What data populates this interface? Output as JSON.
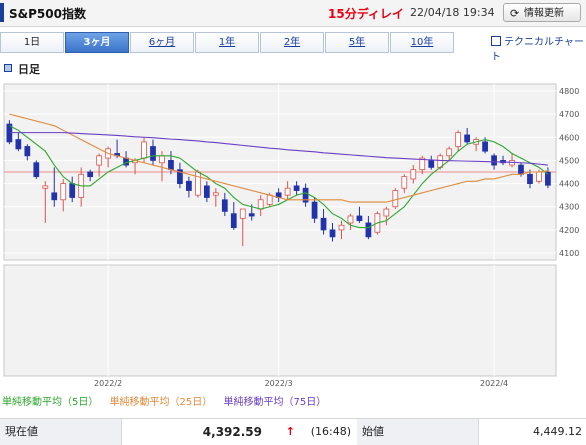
{
  "header": {
    "title": "S&P500指数",
    "delay": "15分ディレイ",
    "datetime": "22/04/18 19:34",
    "refresh_label": "情報更新",
    "refresh_icon": "refresh-icon"
  },
  "tabs": [
    {
      "label": "1日",
      "active": false
    },
    {
      "label": "3ヶ月",
      "active": true
    },
    {
      "label": "6ヶ月",
      "active": false
    },
    {
      "label": "1年",
      "active": false
    },
    {
      "label": "2年",
      "active": false
    },
    {
      "label": "5年",
      "active": false
    },
    {
      "label": "10年",
      "active": false
    }
  ],
  "technical_chart_label": "テクニカルチャート",
  "period_label": "日足",
  "legend": [
    {
      "label": "単純移動平均（5日）",
      "color": "#2ea82e"
    },
    {
      "label": "単純移動平均（25日）",
      "color": "#e08a3c"
    },
    {
      "label": "単純移動平均（75日）",
      "color": "#6a3fc4"
    }
  ],
  "quote": {
    "current_label": "現在値",
    "current_value": "4,392.59",
    "arrow": "↑",
    "current_time": "(16:48)",
    "open_label": "始値",
    "open_value": "4,449.12"
  },
  "chart_data": {
    "type": "candlestick",
    "y_ticks": [
      4100,
      4200,
      4300,
      4400,
      4500,
      4600,
      4700,
      4800
    ],
    "ylim": [
      4070,
      4830
    ],
    "x_labels": [
      {
        "label": "2022/2",
        "index": 11
      },
      {
        "label": "2022/3",
        "index": 30
      },
      {
        "label": "2022/4",
        "index": 54
      }
    ],
    "reference_line": 4450,
    "candles": [
      [
        4657,
        4674,
        4570,
        4580
      ],
      [
        4590,
        4620,
        4540,
        4550
      ],
      [
        4560,
        4570,
        4500,
        4520
      ],
      [
        4490,
        4500,
        4420,
        4430
      ],
      [
        4380,
        4410,
        4230,
        4390
      ],
      [
        4360,
        4470,
        4300,
        4330
      ],
      [
        4330,
        4420,
        4280,
        4400
      ],
      [
        4400,
        4430,
        4320,
        4340
      ],
      [
        4340,
        4470,
        4300,
        4440
      ],
      [
        4450,
        4460,
        4410,
        4430
      ],
      [
        4480,
        4530,
        4430,
        4520
      ],
      [
        4510,
        4560,
        4470,
        4550
      ],
      [
        4530,
        4590,
        4510,
        4520
      ],
      [
        4510,
        4540,
        4470,
        4480
      ],
      [
        4490,
        4510,
        4440,
        4500
      ],
      [
        4510,
        4600,
        4490,
        4580
      ],
      [
        4560,
        4590,
        4480,
        4500
      ],
      [
        4490,
        4540,
        4410,
        4520
      ],
      [
        4500,
        4540,
        4440,
        4460
      ],
      [
        4460,
        4490,
        4380,
        4400
      ],
      [
        4410,
        4430,
        4340,
        4370
      ],
      [
        4350,
        4460,
        4340,
        4450
      ],
      [
        4390,
        4410,
        4320,
        4340
      ],
      [
        4350,
        4380,
        4300,
        4360
      ],
      [
        4330,
        4360,
        4260,
        4280
      ],
      [
        4270,
        4320,
        4200,
        4210
      ],
      [
        4250,
        4290,
        4130,
        4290
      ],
      [
        4270,
        4310,
        4240,
        4260
      ],
      [
        4290,
        4350,
        4260,
        4330
      ],
      [
        4310,
        4360,
        4300,
        4350
      ],
      [
        4360,
        4380,
        4320,
        4340
      ],
      [
        4350,
        4410,
        4330,
        4380
      ],
      [
        4390,
        4410,
        4350,
        4370
      ],
      [
        4380,
        4400,
        4300,
        4320
      ],
      [
        4320,
        4340,
        4230,
        4250
      ],
      [
        4250,
        4290,
        4180,
        4200
      ],
      [
        4200,
        4230,
        4150,
        4170
      ],
      [
        4200,
        4240,
        4160,
        4220
      ],
      [
        4230,
        4270,
        4200,
        4260
      ],
      [
        4260,
        4300,
        4230,
        4240
      ],
      [
        4230,
        4260,
        4160,
        4170
      ],
      [
        4190,
        4280,
        4180,
        4270
      ],
      [
        4260,
        4300,
        4220,
        4290
      ],
      [
        4300,
        4380,
        4290,
        4370
      ],
      [
        4380,
        4440,
        4360,
        4430
      ],
      [
        4420,
        4480,
        4400,
        4460
      ],
      [
        4460,
        4520,
        4440,
        4510
      ],
      [
        4500,
        4520,
        4460,
        4470
      ],
      [
        4470,
        4530,
        4460,
        4520
      ],
      [
        4520,
        4560,
        4500,
        4550
      ],
      [
        4560,
        4630,
        4540,
        4620
      ],
      [
        4610,
        4640,
        4570,
        4580
      ],
      [
        4570,
        4600,
        4540,
        4590
      ],
      [
        4580,
        4600,
        4530,
        4540
      ],
      [
        4520,
        4530,
        4460,
        4480
      ],
      [
        4500,
        4520,
        4480,
        4490
      ],
      [
        4480,
        4530,
        4470,
        4500
      ],
      [
        4480,
        4490,
        4430,
        4440
      ],
      [
        4440,
        4460,
        4380,
        4400
      ],
      [
        4410,
        4460,
        4400,
        4450
      ],
      [
        4449,
        4470,
        4380,
        4393
      ]
    ],
    "sma5": [
      4650,
      4630,
      4600,
      4570,
      4540,
      4480,
      4430,
      4400,
      4390,
      4390,
      4420,
      4450,
      4470,
      4490,
      4500,
      4510,
      4520,
      4520,
      4520,
      4510,
      4480,
      4450,
      4430,
      4400,
      4380,
      4340,
      4310,
      4300,
      4290,
      4300,
      4310,
      4330,
      4350,
      4360,
      4340,
      4310,
      4270,
      4250,
      4220,
      4210,
      4210,
      4230,
      4240,
      4270,
      4300,
      4350,
      4400,
      4440,
      4470,
      4500,
      4540,
      4570,
      4580,
      4590,
      4580,
      4560,
      4530,
      4510,
      4490,
      4470,
      4440
    ],
    "sma25": [
      4700,
      4690,
      4680,
      4670,
      4660,
      4650,
      4630,
      4610,
      4590,
      4570,
      4550,
      4530,
      4520,
      4510,
      4500,
      4490,
      4480,
      4470,
      4460,
      4450,
      4440,
      4430,
      4420,
      4410,
      4400,
      4390,
      4380,
      4370,
      4360,
      4350,
      4340,
      4330,
      4330,
      4330,
      4330,
      4330,
      4330,
      4330,
      4320,
      4320,
      4320,
      4320,
      4320,
      4330,
      4340,
      4350,
      4360,
      4370,
      4380,
      4390,
      4400,
      4410,
      4410,
      4420,
      4420,
      4430,
      4440,
      4440,
      4450,
      4450,
      4455
    ],
    "sma75": [
      4620,
      4620,
      4620,
      4620,
      4620,
      4620,
      4620,
      4618,
      4616,
      4614,
      4612,
      4610,
      4608,
      4605,
      4602,
      4600,
      4598,
      4595,
      4592,
      4590,
      4587,
      4584,
      4580,
      4577,
      4573,
      4569,
      4565,
      4561,
      4557,
      4553,
      4550,
      4546,
      4543,
      4540,
      4537,
      4533,
      4530,
      4527,
      4524,
      4521,
      4518,
      4515,
      4512,
      4510,
      4508,
      4506,
      4504,
      4502,
      4500,
      4499,
      4498,
      4497,
      4496,
      4495,
      4494,
      4493,
      4492,
      4490,
      4488,
      4484,
      4480
    ]
  }
}
